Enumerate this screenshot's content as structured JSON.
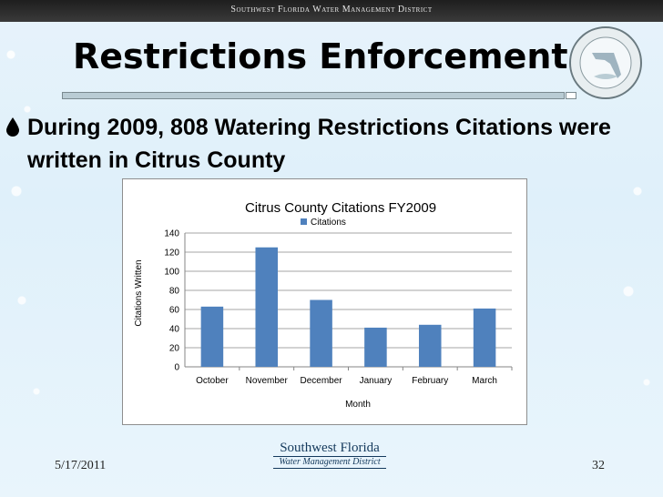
{
  "banner": {
    "text": "Southwest Florida Water Management District"
  },
  "slide": {
    "title": "Restrictions Enforcement",
    "bullet": "During 2009, 808 Watering Restrictions Citations were written in Citrus County",
    "bullet_icon": "water-drop-icon",
    "seal_icon": "district-seal-icon",
    "date": "5/17/2011",
    "page_number": "32",
    "logo": {
      "line1": "Southwest Florida",
      "line2": "Water Management District"
    }
  },
  "colors": {
    "bar": "#4f81bd",
    "banner": "#2a2a2a"
  },
  "chart_data": {
    "type": "bar",
    "title": "Citrus County Citations FY2009",
    "xlabel": "Month",
    "ylabel": "Citations Written",
    "categories": [
      "October",
      "November",
      "December",
      "January",
      "February",
      "March"
    ],
    "series": [
      {
        "name": "Citations",
        "values": [
          63,
          125,
          70,
          41,
          44,
          61
        ]
      }
    ],
    "ylim": [
      0,
      140
    ],
    "yticks": [
      0,
      20,
      40,
      60,
      80,
      100,
      120,
      140
    ],
    "grid": true,
    "legend": "top"
  }
}
